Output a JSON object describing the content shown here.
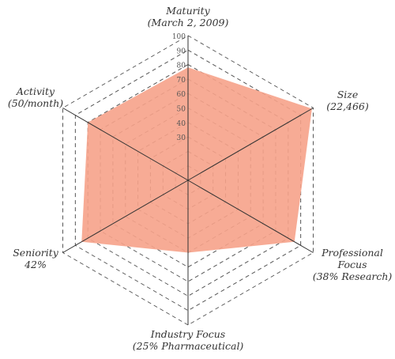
{
  "chart_data": {
    "type": "radar",
    "scale": {
      "min": 0,
      "max": 100,
      "ticks": [
        30,
        40,
        50,
        60,
        70,
        80,
        90,
        100
      ]
    },
    "axes": [
      {
        "name": "Maturity",
        "detail": "(March 2, 2009)",
        "value": 78
      },
      {
        "name": "Size",
        "detail": "(22,466)",
        "value": 99
      },
      {
        "name": "Professional Focus",
        "detail": "(38% Research)",
        "value": 85
      },
      {
        "name": "Industry Focus",
        "detail": "(25% Pharmaceutical)",
        "value": 50
      },
      {
        "name": "Seniority",
        "detail": "42%",
        "value": 85
      },
      {
        "name": "Activity",
        "detail": "(50/month)",
        "value": 80
      }
    ],
    "colors": {
      "fill": "#f6a28a",
      "grid": "#555555",
      "axis": "#333333"
    },
    "grid": true
  }
}
